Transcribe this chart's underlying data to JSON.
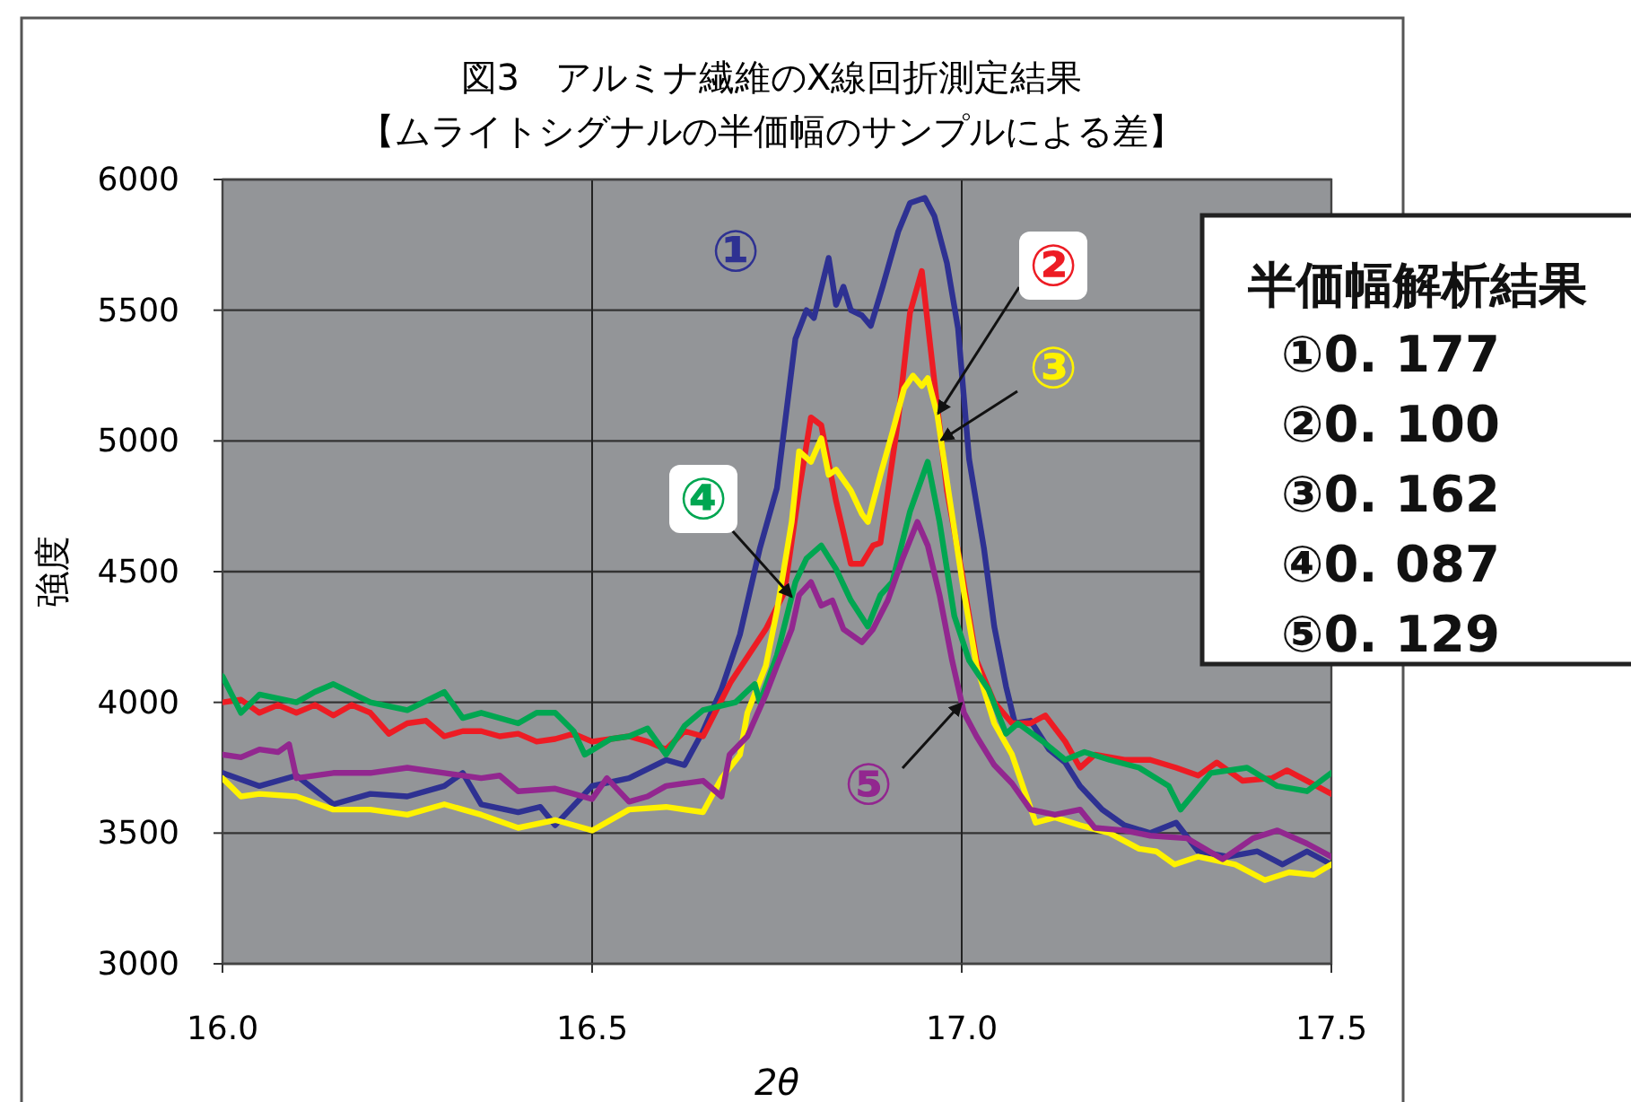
{
  "chart_data": {
    "type": "line",
    "title": "図3　アルミナ繊維のX線回折測定結果",
    "subtitle": "【ムライトシグナルの半価幅のサンプルによる差】",
    "xlabel": "2θ",
    "ylabel": "強度",
    "xlim": [
      16.0,
      17.5
    ],
    "xticks": [
      {
        "value": 16.0,
        "label": "16.0"
      },
      16.5,
      {
        "value": 17.0,
        "label": "17.0"
      },
      17.5
    ],
    "ylim": [
      3000,
      6000
    ],
    "yticks": [
      3000,
      3500,
      4000,
      4500,
      5000,
      5500,
      6000
    ],
    "grid": true,
    "legend": false,
    "annotations": [
      "半価幅解析結果",
      "①0. 177",
      "②0. 100",
      "③0. 162",
      "④0. 087",
      "⑤0. 129"
    ],
    "series": [
      {
        "name": "①",
        "color": "#2e3192",
        "x": [
          16.0,
          16.05,
          16.1,
          16.15,
          16.2,
          16.25,
          16.3,
          16.325,
          16.35,
          16.4,
          16.43,
          16.45,
          16.5,
          16.55,
          16.6,
          16.625,
          16.65,
          16.675,
          16.7,
          16.727,
          16.75,
          16.775,
          16.79,
          16.8,
          16.82,
          16.83,
          16.84,
          16.85,
          16.865,
          16.877,
          16.893,
          16.914,
          16.93,
          16.95,
          16.963,
          16.98,
          16.995,
          17.01,
          17.03,
          17.044,
          17.06,
          17.072,
          17.093,
          17.118,
          17.14,
          17.16,
          17.19,
          17.22,
          17.255,
          17.29,
          17.32,
          17.36,
          17.4,
          17.434,
          17.467,
          17.5
        ],
        "values": [
          3730,
          3680,
          3720,
          3610,
          3650,
          3640,
          3680,
          3730,
          3610,
          3580,
          3600,
          3530,
          3680,
          3710,
          3780,
          3760,
          3890,
          4050,
          4260,
          4590,
          4820,
          5390,
          5500,
          5470,
          5700,
          5520,
          5590,
          5500,
          5480,
          5440,
          5590,
          5800,
          5910,
          5930,
          5860,
          5680,
          5430,
          4930,
          4590,
          4290,
          4060,
          3920,
          3930,
          3820,
          3770,
          3680,
          3590,
          3530,
          3500,
          3540,
          3430,
          3410,
          3430,
          3380,
          3430,
          3380
        ]
      },
      {
        "name": "②",
        "color": "#ed1c24",
        "x": [
          16.0,
          16.025,
          16.05,
          16.075,
          16.1,
          16.125,
          16.15,
          16.175,
          16.2,
          16.225,
          16.25,
          16.275,
          16.3,
          16.325,
          16.35,
          16.375,
          16.4,
          16.425,
          16.45,
          16.475,
          16.5,
          16.525,
          16.55,
          16.575,
          16.6,
          16.625,
          16.65,
          16.687,
          16.735,
          16.76,
          16.78,
          16.796,
          16.81,
          16.83,
          16.85,
          16.865,
          16.88,
          16.89,
          16.914,
          16.93,
          16.946,
          16.958,
          16.98,
          17.0,
          17.02,
          17.044,
          17.068,
          17.093,
          17.113,
          17.14,
          17.16,
          17.18,
          17.22,
          17.255,
          17.29,
          17.32,
          17.345,
          17.38,
          17.42,
          17.44,
          17.467,
          17.5
        ],
        "values": [
          4000,
          4010,
          3960,
          3990,
          3960,
          3990,
          3950,
          3990,
          3960,
          3880,
          3920,
          3930,
          3870,
          3890,
          3890,
          3870,
          3880,
          3850,
          3860,
          3880,
          3850,
          3860,
          3870,
          3850,
          3820,
          3890,
          3870,
          4075,
          4280,
          4420,
          4810,
          5090,
          5060,
          4770,
          4530,
          4530,
          4600,
          4610,
          5080,
          5490,
          5650,
          5350,
          4810,
          4500,
          4160,
          4000,
          3920,
          3920,
          3950,
          3850,
          3750,
          3800,
          3780,
          3780,
          3750,
          3720,
          3770,
          3700,
          3710,
          3740,
          3700,
          3650
        ]
      },
      {
        "name": "③",
        "color": "#fff200",
        "x": [
          16.0,
          16.025,
          16.05,
          16.1,
          16.15,
          16.2,
          16.25,
          16.3,
          16.35,
          16.4,
          16.45,
          16.5,
          16.55,
          16.6,
          16.65,
          16.675,
          16.7,
          16.71,
          16.735,
          16.75,
          16.77,
          16.78,
          16.796,
          16.81,
          16.82,
          16.83,
          16.85,
          16.865,
          16.873,
          16.89,
          16.906,
          16.922,
          16.934,
          16.946,
          16.954,
          16.967,
          16.983,
          17.003,
          17.02,
          17.044,
          17.068,
          17.085,
          17.1,
          17.126,
          17.16,
          17.2,
          17.24,
          17.263,
          17.288,
          17.32,
          17.37,
          17.41,
          17.443,
          17.476,
          17.5
        ],
        "values": [
          3710,
          3640,
          3650,
          3640,
          3590,
          3590,
          3570,
          3610,
          3570,
          3520,
          3550,
          3510,
          3590,
          3600,
          3580,
          3710,
          3800,
          3960,
          4140,
          4350,
          4690,
          4960,
          4920,
          5010,
          4870,
          4890,
          4810,
          4720,
          4690,
          4870,
          5030,
          5200,
          5250,
          5210,
          5240,
          5100,
          4790,
          4420,
          4140,
          3920,
          3800,
          3660,
          3540,
          3560,
          3530,
          3500,
          3440,
          3430,
          3380,
          3410,
          3380,
          3320,
          3350,
          3340,
          3380
        ]
      },
      {
        "name": "④",
        "color": "#00a651",
        "x": [
          16.0,
          16.025,
          16.05,
          16.1,
          16.125,
          16.15,
          16.2,
          16.25,
          16.3,
          16.325,
          16.35,
          16.4,
          16.425,
          16.45,
          16.475,
          16.49,
          16.525,
          16.55,
          16.575,
          16.6,
          16.625,
          16.65,
          16.694,
          16.72,
          16.727,
          16.75,
          16.775,
          16.79,
          16.81,
          16.83,
          16.85,
          16.873,
          16.89,
          16.906,
          16.93,
          16.954,
          16.97,
          16.99,
          17.01,
          17.036,
          17.06,
          17.076,
          17.11,
          17.14,
          17.166,
          17.2,
          17.24,
          17.28,
          17.296,
          17.337,
          17.386,
          17.427,
          17.467,
          17.5
        ],
        "values": [
          4100,
          3960,
          4030,
          4000,
          4040,
          4070,
          4000,
          3970,
          4040,
          3940,
          3960,
          3920,
          3960,
          3960,
          3890,
          3800,
          3860,
          3870,
          3900,
          3800,
          3910,
          3970,
          4000,
          4070,
          4000,
          4180,
          4460,
          4550,
          4600,
          4510,
          4390,
          4290,
          4410,
          4460,
          4730,
          4920,
          4690,
          4330,
          4160,
          4050,
          3880,
          3920,
          3850,
          3780,
          3810,
          3780,
          3750,
          3680,
          3590,
          3730,
          3750,
          3680,
          3660,
          3730
        ]
      },
      {
        "name": "⑤",
        "color": "#92278f",
        "x": [
          16.0,
          16.025,
          16.05,
          16.075,
          16.09,
          16.1,
          16.15,
          16.2,
          16.25,
          16.3,
          16.35,
          16.375,
          16.4,
          16.45,
          16.475,
          16.5,
          16.52,
          16.55,
          16.575,
          16.6,
          16.65,
          16.675,
          16.686,
          16.71,
          16.735,
          16.75,
          16.77,
          16.78,
          16.796,
          16.81,
          16.825,
          16.84,
          16.865,
          16.88,
          16.9,
          16.92,
          16.94,
          16.954,
          16.97,
          16.987,
          17.003,
          17.02,
          17.044,
          17.068,
          17.093,
          17.126,
          17.16,
          17.18,
          17.22,
          17.255,
          17.305,
          17.353,
          17.394,
          17.427,
          17.467,
          17.5
        ],
        "values": [
          3800,
          3790,
          3820,
          3810,
          3840,
          3710,
          3730,
          3730,
          3750,
          3730,
          3710,
          3720,
          3660,
          3670,
          3650,
          3630,
          3710,
          3620,
          3640,
          3680,
          3700,
          3640,
          3800,
          3870,
          4030,
          4140,
          4280,
          4410,
          4460,
          4370,
          4390,
          4280,
          4230,
          4280,
          4390,
          4550,
          4690,
          4600,
          4410,
          4160,
          3960,
          3870,
          3760,
          3690,
          3590,
          3570,
          3590,
          3520,
          3510,
          3490,
          3480,
          3400,
          3480,
          3510,
          3460,
          3410
        ]
      }
    ]
  }
}
